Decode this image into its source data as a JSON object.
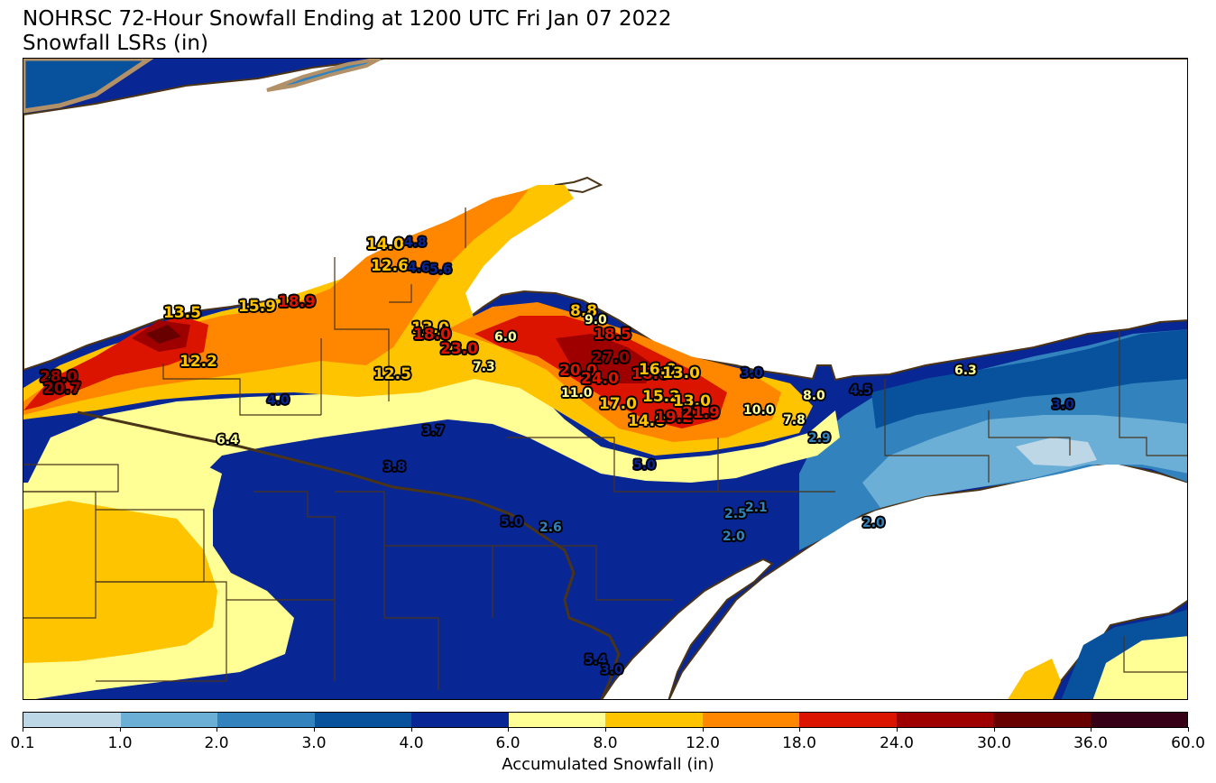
{
  "title_line1": "NOHRSC 72-Hour Snowfall Ending at 1200 UTC Fri Jan 07 2022",
  "title_line2": "Snowfall LSRs (in)",
  "colorbar": {
    "label": "Accumulated Snowfall (in)",
    "ticks": [
      "0.1",
      "1.0",
      "2.0",
      "3.0",
      "4.0",
      "6.0",
      "8.0",
      "12.0",
      "18.0",
      "24.0",
      "30.0",
      "36.0",
      "60.0"
    ],
    "colors": [
      "#bdd7e7",
      "#6baed6",
      "#3182bd",
      "#08519c",
      "#082694",
      "#ffff96",
      "#ffc400",
      "#ff8700",
      "#db1400",
      "#9e0000",
      "#690000",
      "#360016"
    ]
  },
  "map_colors": {
    "lake": "#ffffff",
    "shore": "#b39168",
    "border": "#4a3418",
    "county": "#4a3418"
  },
  "lsr_reports": [
    {
      "v": "14.0",
      "c": "orange"
    },
    {
      "v": "4.8",
      "c": "navy"
    },
    {
      "v": "12.6",
      "c": "orange"
    },
    {
      "v": "4.6",
      "c": "navy"
    },
    {
      "v": "5.6",
      "c": "navy"
    },
    {
      "v": "13.5",
      "c": "orange"
    },
    {
      "v": "15.9",
      "c": "orange"
    },
    {
      "v": "18.9",
      "c": "red"
    },
    {
      "v": "12.2",
      "c": "orange"
    },
    {
      "v": "28.0",
      "c": "darkred"
    },
    {
      "v": "20.7",
      "c": "darkred"
    },
    {
      "v": "12.5",
      "c": "orange"
    },
    {
      "v": "4.0",
      "c": "navy"
    },
    {
      "v": "6.4",
      "c": "yellow"
    },
    {
      "v": "13.0",
      "c": "orange"
    },
    {
      "v": "18.0",
      "c": "red"
    },
    {
      "v": "23.0",
      "c": "red"
    },
    {
      "v": "6.0",
      "c": "yellow"
    },
    {
      "v": "7.3",
      "c": "yellow"
    },
    {
      "v": "8.8",
      "c": "orange"
    },
    {
      "v": "9.0",
      "c": "yellow"
    },
    {
      "v": "18.5",
      "c": "red"
    },
    {
      "v": "20.0",
      "c": "red"
    },
    {
      "v": "24.0",
      "c": "red"
    },
    {
      "v": "27.0",
      "c": "darkred"
    },
    {
      "v": "18.0",
      "c": "red"
    },
    {
      "v": "16.0",
      "c": "orange"
    },
    {
      "v": "13.0",
      "c": "orange"
    },
    {
      "v": "11.0",
      "c": "yellow"
    },
    {
      "v": "17.0",
      "c": "orange"
    },
    {
      "v": "15.2",
      "c": "orange"
    },
    {
      "v": "13.0",
      "c": "orange"
    },
    {
      "v": "14.0",
      "c": "orange"
    },
    {
      "v": "19.2",
      "c": "red"
    },
    {
      "v": "21.9",
      "c": "red"
    },
    {
      "v": "3.0",
      "c": "navy"
    },
    {
      "v": "8.0",
      "c": "yellow"
    },
    {
      "v": "10.0",
      "c": "yellow"
    },
    {
      "v": "7.8",
      "c": "yellow"
    },
    {
      "v": "2.9",
      "c": "blue"
    },
    {
      "v": "4.5",
      "c": "navy"
    },
    {
      "v": "6.3",
      "c": "yellow"
    },
    {
      "v": "3.0",
      "c": "navy"
    },
    {
      "v": "3.7",
      "c": "navy"
    },
    {
      "v": "3.8",
      "c": "navy"
    },
    {
      "v": "5.0",
      "c": "navy"
    },
    {
      "v": "5.0",
      "c": "navy"
    },
    {
      "v": "2.6",
      "c": "blue"
    },
    {
      "v": "2.5",
      "c": "blue"
    },
    {
      "v": "2.1",
      "c": "blue"
    },
    {
      "v": "2.0",
      "c": "blue"
    },
    {
      "v": "2.0",
      "c": "blue"
    },
    {
      "v": "5.4",
      "c": "navy"
    },
    {
      "v": "3.0",
      "c": "navy"
    }
  ]
}
